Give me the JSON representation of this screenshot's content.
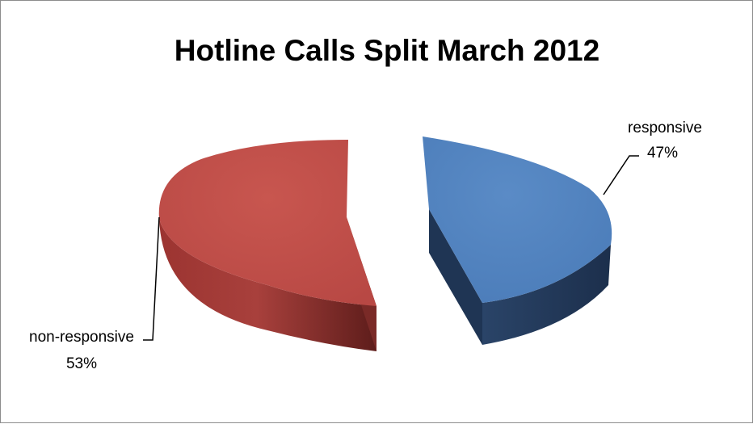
{
  "chart_data": {
    "type": "pie",
    "title": "Hotline Calls Split March 2012",
    "three_d": true,
    "exploded": true,
    "legend": "none",
    "slices": [
      {
        "label": "responsive",
        "percent_label": "47%",
        "value": 47,
        "color": "#4f81bd"
      },
      {
        "label": "non-responsive",
        "percent_label": "53%",
        "value": 53,
        "color": "#c0504d"
      }
    ]
  }
}
